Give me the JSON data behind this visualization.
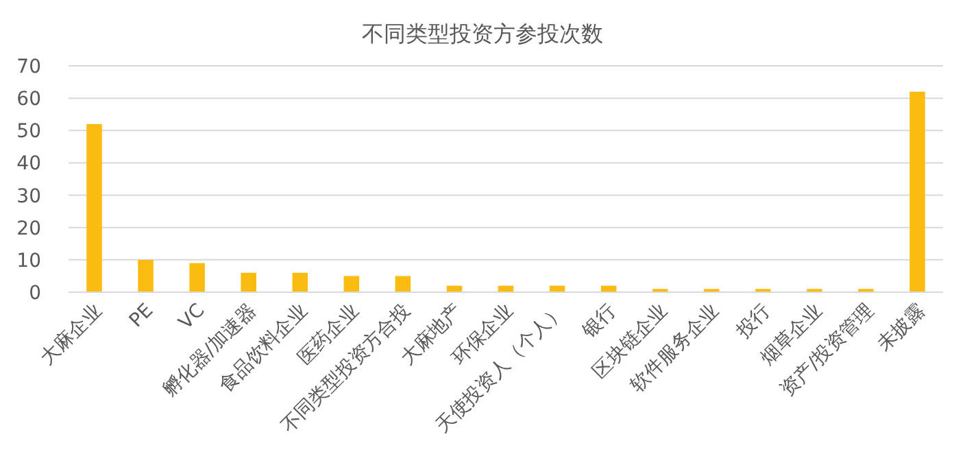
{
  "chart_data": {
    "type": "bar",
    "title": "不同类型投资方参投次数",
    "categories": [
      "大麻企业",
      "PE",
      "VC",
      "孵化器/加速器",
      "食品饮料企业",
      "医药企业",
      "不同类型投资方合投",
      "大麻地产",
      "环保企业",
      "天使投资人（个人）",
      "银行",
      "区块链企业",
      "软件服务企业",
      "投行",
      "烟草企业",
      "资产/投资管理",
      "未披露"
    ],
    "values": [
      52,
      10,
      9,
      6,
      6,
      5,
      5,
      2,
      2,
      2,
      2,
      1,
      1,
      1,
      1,
      1,
      62
    ],
    "color": "#fbbb0f",
    "ylim": [
      0,
      70
    ],
    "yticks": [
      0,
      10,
      20,
      30,
      40,
      50,
      60,
      70
    ],
    "grid": "y"
  }
}
